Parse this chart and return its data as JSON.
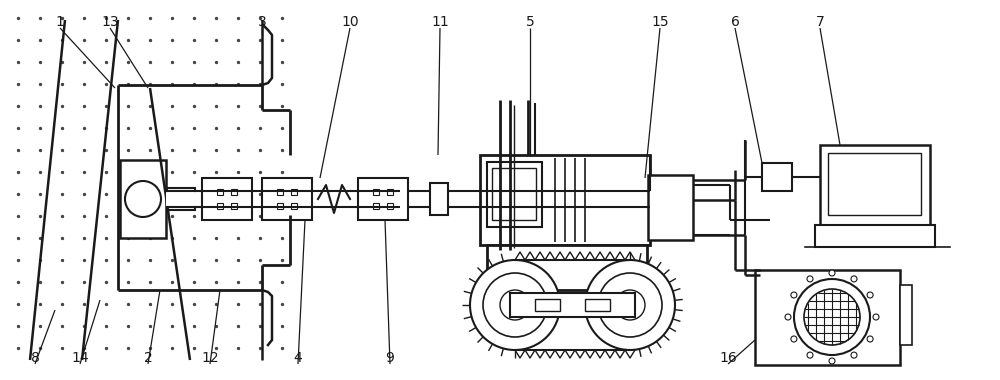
{
  "figsize": [
    10.0,
    3.8
  ],
  "dpi": 100,
  "bg_color": "#ffffff",
  "line_color": "#1a1a1a",
  "dot_color": "#444444"
}
